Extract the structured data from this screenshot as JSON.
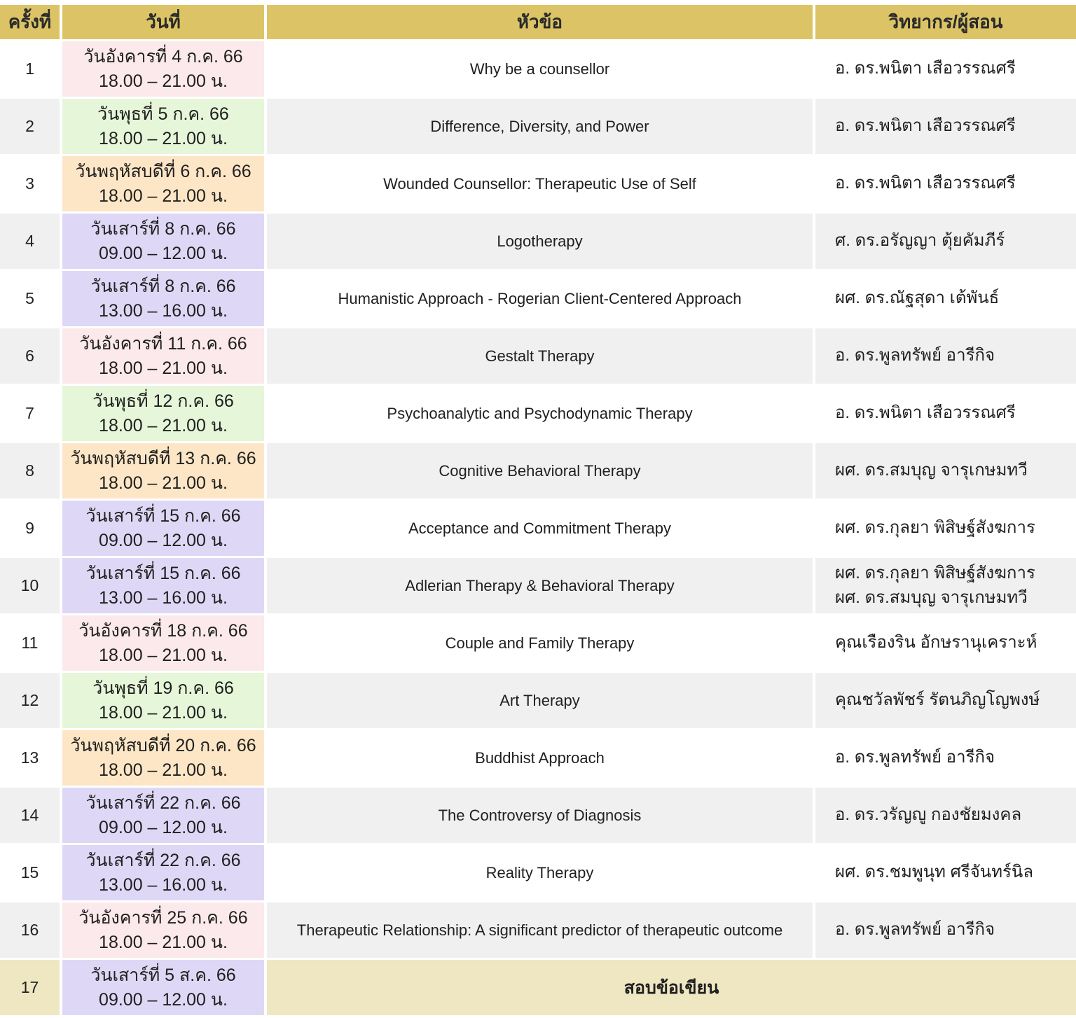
{
  "header": {
    "session": "ครั้งที่",
    "date": "วันที่",
    "topic": "หัวข้อ",
    "speaker": "วิทยากร/ผู้สอน"
  },
  "colors": {
    "header_bg": "#dcc466",
    "row_stripe": "#f0f0f0",
    "row_white": "#ffffff",
    "tuesday_pink": "#fbe9eb",
    "wednesday_green": "#e6f6d9",
    "thursday_peach": "#fde6c6",
    "saturday_lavender": "#ded8f6",
    "exam_yellow": "#eee7c2",
    "text": "#1f1f1f"
  },
  "rows": [
    {
      "no": "1",
      "date1": "วันอังคารที่ 4 ก.ค. 66",
      "date2": "18.00 – 21.00 น.",
      "color": "pink",
      "topic": "Why be a counsellor",
      "speakers": [
        "อ. ดร.พนิตา เสือวรรณศรี"
      ]
    },
    {
      "no": "2",
      "date1": "วันพุธที่ 5 ก.ค. 66",
      "date2": "18.00 – 21.00 น.",
      "color": "green",
      "topic": "Difference, Diversity, and Power",
      "speakers": [
        "อ. ดร.พนิตา เสือวรรณศรี"
      ]
    },
    {
      "no": "3",
      "date1": "วันพฤหัสบดีที่ 6 ก.ค. 66",
      "date2": "18.00 – 21.00 น.",
      "color": "peach",
      "topic": "Wounded Counsellor: Therapeutic Use of Self",
      "speakers": [
        "อ. ดร.พนิตา เสือวรรณศรี"
      ]
    },
    {
      "no": "4",
      "date1": "วันเสาร์ที่ 8 ก.ค. 66",
      "date2": "09.00 – 12.00 น.",
      "color": "lavender",
      "topic": "Logotherapy",
      "speakers": [
        "ศ. ดร.อรัญญา ตุ้ยคัมภีร์"
      ]
    },
    {
      "no": "5",
      "date1": "วันเสาร์ที่ 8 ก.ค. 66",
      "date2": "13.00 – 16.00 น.",
      "color": "lavender",
      "topic": "Humanistic Approach - Rogerian Client-Centered Approach",
      "speakers": [
        "ผศ. ดร.ณัฐสุดา เต้พันธ์"
      ]
    },
    {
      "no": "6",
      "date1": "วันอังคารที่ 11 ก.ค. 66",
      "date2": "18.00 – 21.00 น.",
      "color": "pink",
      "topic": "Gestalt Therapy",
      "speakers": [
        "อ. ดร.พูลทรัพย์ อารีกิจ"
      ]
    },
    {
      "no": "7",
      "date1": "วันพุธที่ 12 ก.ค. 66",
      "date2": "18.00 – 21.00 น.",
      "color": "green",
      "topic": "Psychoanalytic and Psychodynamic Therapy",
      "speakers": [
        "อ. ดร.พนิตา เสือวรรณศรี"
      ]
    },
    {
      "no": "8",
      "date1": "วันพฤหัสบดีที่ 13 ก.ค. 66",
      "date2": "18.00 – 21.00 น.",
      "color": "peach",
      "topic": "Cognitive Behavioral Therapy",
      "speakers": [
        "ผศ. ดร.สมบุญ จารุเกษมทวี"
      ]
    },
    {
      "no": "9",
      "date1": "วันเสาร์ที่ 15 ก.ค. 66",
      "date2": "09.00 – 12.00 น.",
      "color": "lavender",
      "topic": "Acceptance and Commitment Therapy",
      "speakers": [
        "ผศ. ดร.กุลยา พิสิษฐ์สังฆการ"
      ]
    },
    {
      "no": "10",
      "date1": "วันเสาร์ที่ 15 ก.ค. 66",
      "date2": "13.00 – 16.00 น.",
      "color": "lavender",
      "topic": "Adlerian Therapy & Behavioral Therapy",
      "speakers": [
        "ผศ. ดร.กุลยา พิสิษฐ์สังฆการ",
        "ผศ. ดร.สมบุญ จารุเกษมทวี"
      ]
    },
    {
      "no": "11",
      "date1": "วันอังคารที่ 18 ก.ค. 66",
      "date2": "18.00 – 21.00 น.",
      "color": "pink",
      "topic": "Couple and Family Therapy",
      "speakers": [
        "คุณเรืองริน อักษรานุเคราะห์"
      ]
    },
    {
      "no": "12",
      "date1": "วันพุธที่ 19 ก.ค. 66",
      "date2": "18.00 – 21.00 น.",
      "color": "green",
      "topic": "Art Therapy",
      "speakers": [
        "คุณชวัลพัชร์ รัตนภิญโญพงษ์"
      ]
    },
    {
      "no": "13",
      "date1": "วันพฤหัสบดีที่ 20 ก.ค. 66",
      "date2": "18.00 – 21.00 น.",
      "color": "peach",
      "topic": "Buddhist Approach",
      "speakers": [
        "อ. ดร.พูลทรัพย์ อารีกิจ"
      ]
    },
    {
      "no": "14",
      "date1": "วันเสาร์ที่ 22 ก.ค. 66",
      "date2": "09.00 – 12.00 น.",
      "color": "lavender",
      "topic": "The Controversy of Diagnosis",
      "speakers": [
        "อ. ดร.วรัญญู กองชัยมงคล"
      ]
    },
    {
      "no": "15",
      "date1": "วันเสาร์ที่ 22 ก.ค. 66",
      "date2": "13.00 – 16.00 น.",
      "color": "lavender",
      "topic": "Reality Therapy",
      "speakers": [
        "ผศ. ดร.ชมพูนุท ศรีจันทร์นิล"
      ]
    },
    {
      "no": "16",
      "date1": "วันอังคารที่ 25 ก.ค. 66",
      "date2": "18.00 – 21.00 น.",
      "color": "pink",
      "topic": "Therapeutic Relationship: A significant predictor of therapeutic outcome",
      "speakers": [
        "อ. ดร.พูลทรัพย์ อารีกิจ"
      ]
    },
    {
      "no": "17",
      "date1": "วันเสาร์ที่ 5 ส.ค. 66",
      "date2": "09.00 – 12.00 น.",
      "color": "lavender",
      "topic": "สอบข้อเขียน",
      "speakers": [],
      "exam": true
    }
  ]
}
